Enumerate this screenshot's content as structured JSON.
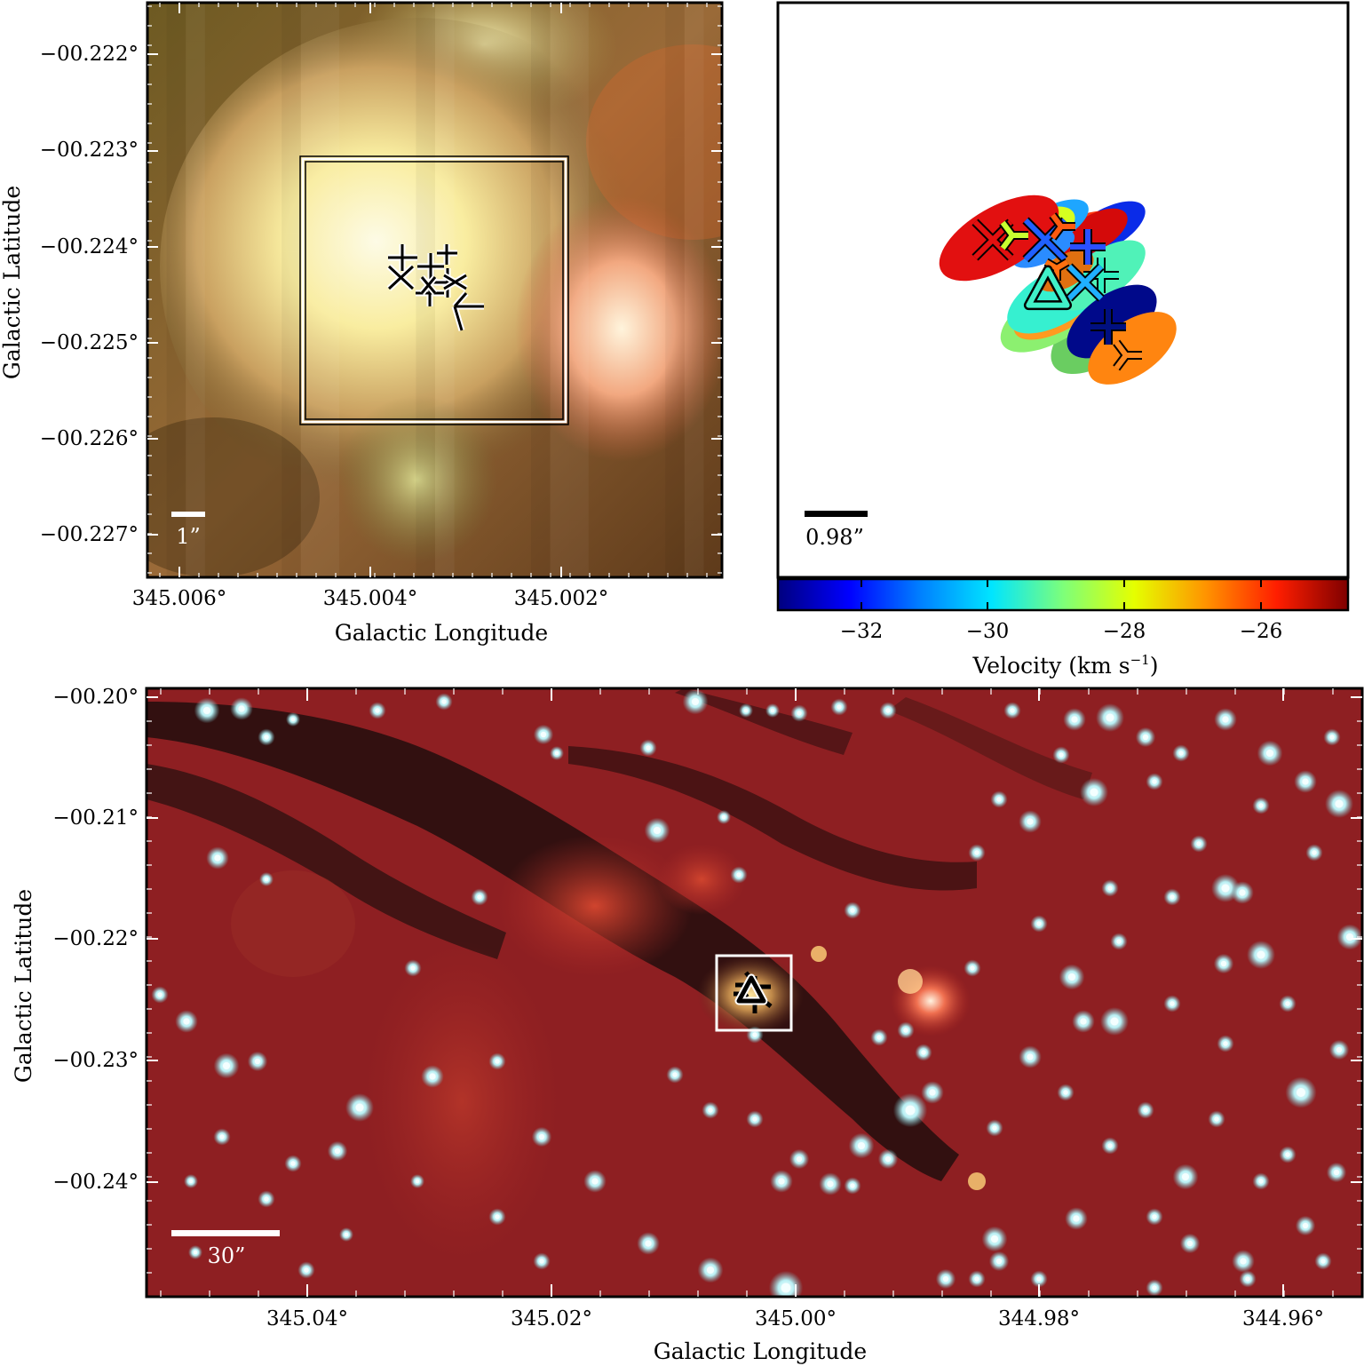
{
  "panels": {
    "top_left": {
      "xlabel": "Galactic Longitude",
      "ylabel": "Galactic Latitude",
      "xticks": [
        "345.006°",
        "345.004°",
        "345.002°"
      ],
      "yticks": [
        "−00.222°",
        "−00.223°",
        "−00.224°",
        "−00.225°",
        "−00.226°",
        "−00.227°"
      ],
      "scalebar": "1”"
    },
    "top_right": {
      "scalebar": "0.98”",
      "colorbar_label": "Velocity (km s",
      "colorbar_label_sup": "−1",
      "colorbar_label_end": ")",
      "colorbar_ticks": [
        "−32",
        "−30",
        "−28",
        "−26"
      ]
    },
    "bottom": {
      "xlabel": "Galactic Longitude",
      "ylabel": "Galactic Latitude",
      "xticks": [
        "345.04°",
        "345.02°",
        "345.00°",
        "344.98°",
        "344.96°"
      ],
      "yticks": [
        "−00.20°",
        "−00.21°",
        "−00.22°",
        "−00.23°",
        "−00.24°"
      ],
      "scalebar": "30”"
    }
  },
  "colors": {
    "colormap": [
      "#00007f",
      "#0000ff",
      "#0080ff",
      "#00e5ff",
      "#7dff7a",
      "#e5ff00",
      "#ff9400",
      "#ff1e00",
      "#7f0000"
    ],
    "dust_red": "#8e1f22",
    "dark_lane": "#1c0d0c",
    "core_yellow": "#fff5b0"
  },
  "sources": {
    "count_top_right": 11,
    "velocity_range_kms": [
      -33.2,
      -25.0
    ]
  }
}
